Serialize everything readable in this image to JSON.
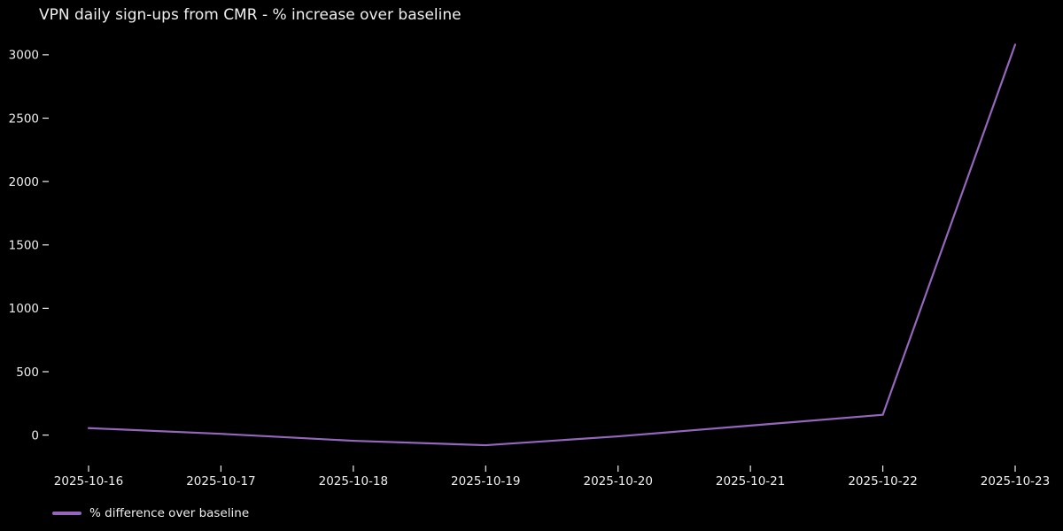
{
  "chart_data": {
    "type": "line",
    "title": "VPN daily sign-ups from CMR - % increase over baseline",
    "x": [
      "2025-10-16",
      "2025-10-17",
      "2025-10-18",
      "2025-10-19",
      "2025-10-20",
      "2025-10-21",
      "2025-10-22",
      "2025-10-23"
    ],
    "series": [
      {
        "name": "% difference over baseline",
        "values": [
          55,
          10,
          -45,
          -80,
          -10,
          75,
          160,
          3080
        ],
        "color": "#9467bd"
      }
    ],
    "xlabel": "",
    "ylabel": "",
    "yticks": [
      0,
      500,
      1000,
      1500,
      2000,
      2500,
      3000
    ],
    "ylim": [
      -240,
      3240
    ],
    "grid": false,
    "legend_position": "lower-left",
    "background": "#000000",
    "text_color": "#efefef"
  }
}
